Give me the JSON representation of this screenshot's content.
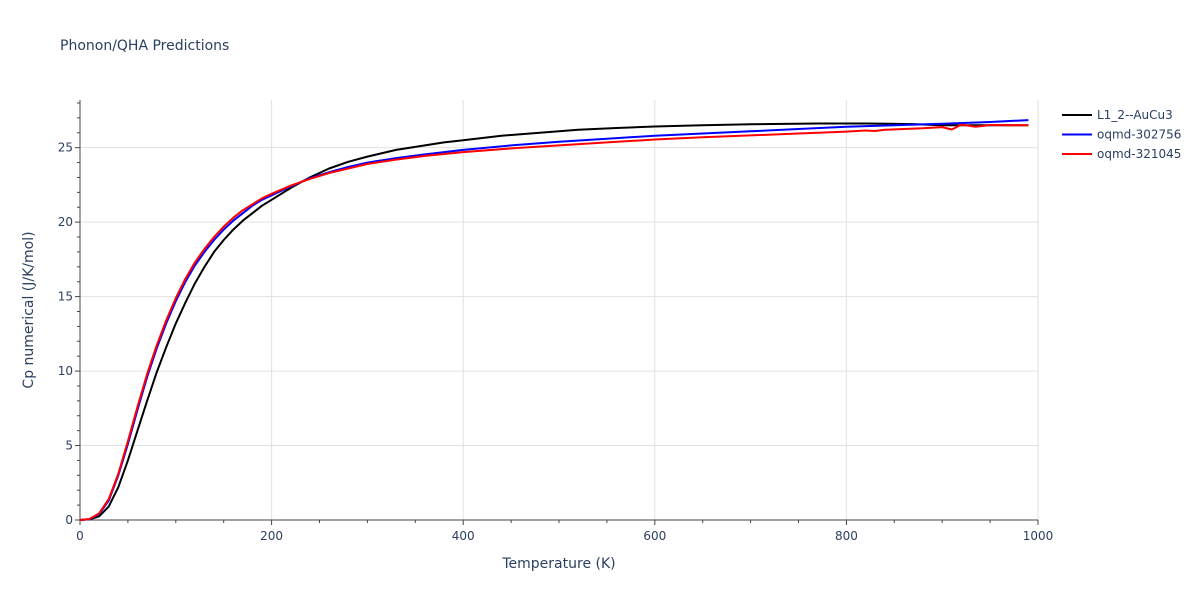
{
  "chart_data": {
    "type": "line",
    "title": "Phonon/QHA Predictions",
    "xlabel": "Temperature (K)",
    "ylabel": "Cp numerical (J/K/mol)",
    "xlim": [
      0,
      1000
    ],
    "ylim": [
      0,
      28.2
    ],
    "xticks": [
      0,
      200,
      400,
      600,
      800,
      1000
    ],
    "yticks": [
      0,
      5,
      10,
      15,
      20,
      25
    ],
    "grid": true,
    "legend_position": "top-right",
    "series": [
      {
        "name": "L1_2--AuCu3",
        "color": "#000000",
        "x": [
          0,
          10,
          20,
          30,
          40,
          50,
          60,
          70,
          80,
          90,
          100,
          110,
          120,
          130,
          140,
          150,
          160,
          170,
          180,
          190,
          200,
          220,
          240,
          260,
          280,
          300,
          330,
          360,
          380,
          400,
          440,
          480,
          520,
          560,
          600,
          650,
          700,
          770,
          820,
          870,
          900,
          940,
          990
        ],
        "y": [
          0,
          0.05,
          0.25,
          0.9,
          2.2,
          4.0,
          6.0,
          8.0,
          9.9,
          11.6,
          13.2,
          14.6,
          15.9,
          17.0,
          18.0,
          18.8,
          19.5,
          20.1,
          20.6,
          21.1,
          21.5,
          22.3,
          23.0,
          23.6,
          24.05,
          24.4,
          24.85,
          25.15,
          25.35,
          25.5,
          25.8,
          26.0,
          26.2,
          26.32,
          26.42,
          26.5,
          26.57,
          26.62,
          26.62,
          26.58,
          26.5,
          26.5,
          26.5
        ]
      },
      {
        "name": "oqmd-302756",
        "color": "#0000ff",
        "x": [
          0,
          10,
          20,
          30,
          40,
          50,
          60,
          70,
          80,
          90,
          100,
          110,
          120,
          130,
          140,
          150,
          160,
          170,
          180,
          190,
          200,
          220,
          240,
          260,
          280,
          300,
          330,
          360,
          400,
          450,
          500,
          550,
          600,
          650,
          700,
          750,
          800,
          850,
          900,
          950,
          990
        ],
        "y": [
          0,
          0.05,
          0.4,
          1.3,
          3.0,
          5.1,
          7.4,
          9.6,
          11.5,
          13.2,
          14.7,
          16.0,
          17.1,
          18.0,
          18.8,
          19.5,
          20.1,
          20.6,
          21.1,
          21.5,
          21.8,
          22.4,
          22.95,
          23.35,
          23.7,
          24.0,
          24.3,
          24.55,
          24.85,
          25.15,
          25.4,
          25.6,
          25.8,
          25.95,
          26.1,
          26.25,
          26.4,
          26.5,
          26.6,
          26.72,
          26.85
        ]
      },
      {
        "name": "oqmd-321045",
        "color": "#ff0000",
        "x": [
          0,
          10,
          20,
          30,
          40,
          50,
          60,
          70,
          80,
          90,
          100,
          110,
          120,
          130,
          140,
          150,
          160,
          170,
          180,
          190,
          200,
          220,
          240,
          260,
          280,
          300,
          330,
          360,
          400,
          450,
          500,
          550,
          600,
          650,
          700,
          750,
          800,
          820,
          830,
          840,
          860,
          880,
          900,
          910,
          920,
          935,
          950,
          970,
          990
        ],
        "y": [
          0,
          0.07,
          0.45,
          1.4,
          3.1,
          5.3,
          7.6,
          9.8,
          11.7,
          13.4,
          14.9,
          16.2,
          17.3,
          18.2,
          19.0,
          19.7,
          20.3,
          20.8,
          21.2,
          21.6,
          21.9,
          22.45,
          22.9,
          23.3,
          23.6,
          23.9,
          24.2,
          24.45,
          24.7,
          24.95,
          25.15,
          25.35,
          25.55,
          25.7,
          25.82,
          25.95,
          26.08,
          26.15,
          26.12,
          26.2,
          26.25,
          26.3,
          26.38,
          26.22,
          26.55,
          26.4,
          26.52,
          26.5,
          26.5
        ]
      }
    ]
  }
}
